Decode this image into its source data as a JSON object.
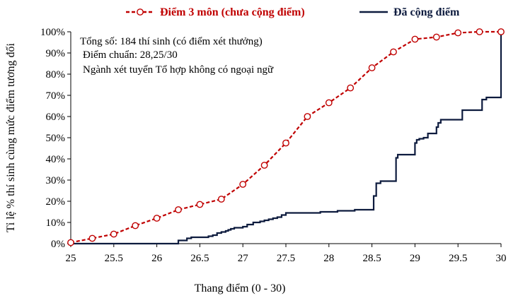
{
  "chart_data": {
    "type": "line",
    "xlabel": "Thang điểm (0 - 30)",
    "ylabel": "Tỉ lệ % thí sinh cùng mức điểm tương đối",
    "xlim": [
      25,
      30
    ],
    "ylim": [
      0,
      100
    ],
    "x_ticks": [
      "25",
      "25.5",
      "26",
      "26.5",
      "27",
      "27.5",
      "28",
      "28.5",
      "29",
      "29.5",
      "30"
    ],
    "y_ticks": [
      "0%",
      "10%",
      "20%",
      "30%",
      "40%",
      "50%",
      "60%",
      "70%",
      "80%",
      "90%",
      "100%"
    ],
    "grid": false,
    "legend_position": "top",
    "annotations": [
      "Tổng số: 184 thí sinh  (có điểm xét thưởng)",
      "Điểm chuẩn: 28,25/30",
      "Ngành xét tuyển Tổ hợp không có ngoại ngữ"
    ],
    "series": [
      {
        "name": "Điểm 3 môn (chưa cộng điểm)",
        "color": "#c00000",
        "style": "dashed-with-circle-markers",
        "x": [
          25,
          25.25,
          25.5,
          25.75,
          26,
          26.25,
          26.5,
          26.75,
          27,
          27.25,
          27.5,
          27.75,
          28,
          28.25,
          28.5,
          28.75,
          29,
          29.25,
          29.5,
          29.75,
          30
        ],
        "y": [
          0.5,
          2.5,
          4.5,
          8.5,
          12,
          16,
          18.5,
          21,
          28,
          37,
          47.5,
          60,
          66.5,
          73.5,
          83,
          90.5,
          96.5,
          97.5,
          99.5,
          100,
          100
        ]
      },
      {
        "name": "Đã cộng điểm",
        "color": "#0d1b3e",
        "style": "step",
        "x": [
          25,
          26.24,
          26.25,
          26.35,
          26.4,
          26.55,
          26.6,
          26.65,
          26.7,
          26.75,
          26.8,
          26.83,
          26.86,
          26.9,
          26.95,
          27.0,
          27.05,
          27.12,
          27.2,
          27.25,
          27.3,
          27.35,
          27.4,
          27.45,
          27.5,
          27.6,
          27.7,
          27.8,
          27.9,
          28.0,
          28.1,
          28.2,
          28.3,
          28.5,
          28.52,
          28.55,
          28.6,
          28.75,
          28.78,
          28.8,
          28.85,
          28.97,
          29.0,
          29.02,
          29.05,
          29.1,
          29.15,
          29.2,
          29.25,
          29.27,
          29.3,
          29.35,
          29.5,
          29.55,
          29.65,
          29.75,
          29.78,
          29.83,
          29.99,
          30
        ],
        "y": [
          0,
          0,
          1.5,
          2.5,
          3,
          3,
          3.5,
          4,
          5,
          5.5,
          6,
          6.5,
          7,
          7.5,
          7.5,
          8,
          9,
          10,
          10.5,
          11,
          11.5,
          12,
          12.5,
          13.5,
          14.5,
          14.5,
          14.5,
          14.5,
          15,
          15,
          15.5,
          15.5,
          16,
          16,
          22.5,
          28.5,
          29.5,
          29.5,
          40.5,
          42,
          42,
          42,
          47.5,
          49,
          49.5,
          50,
          52,
          52,
          55,
          57,
          58.5,
          58.5,
          58.5,
          63,
          63,
          63,
          68,
          69,
          69,
          100
        ]
      }
    ]
  }
}
